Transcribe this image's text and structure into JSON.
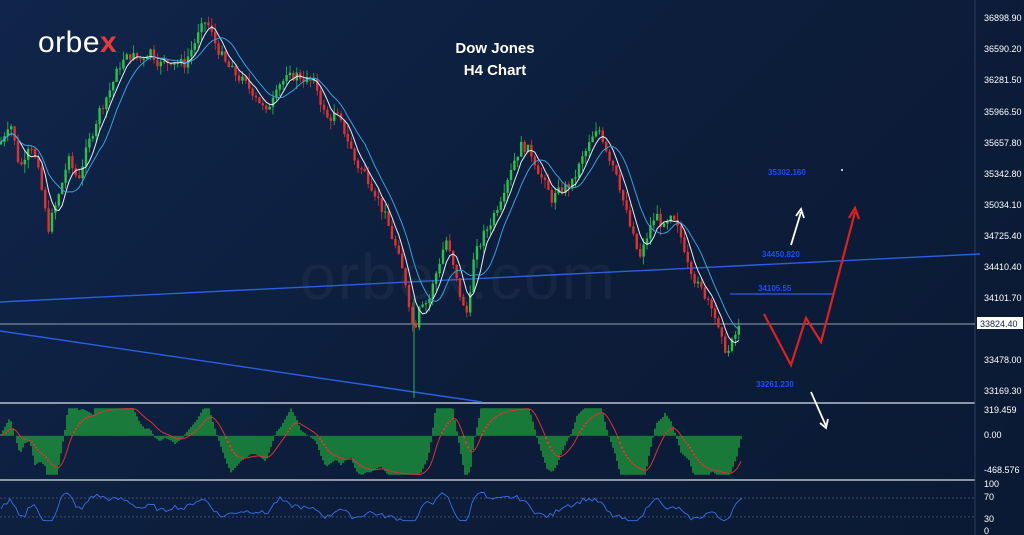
{
  "header": {
    "logo_text": "orbe",
    "logo_mark": "x",
    "title_line1": "Dow Jones",
    "title_line2": "H4 Chart",
    "watermark": "orbex.com"
  },
  "colors": {
    "background": "#0d1f3c",
    "bull_candle": "#27c34a",
    "bear_candle": "#e0312f",
    "trendline": "#2b5fe0",
    "projection_red": "#e0201e",
    "projection_white": "#ffffff",
    "macd_hist": "#21b83a",
    "rsi_line": "#3a6fe6"
  },
  "chart_data": {
    "type": "candlestick",
    "title": "",
    "price_axis_ticks": [
      "36898.90",
      "36590.20",
      "36281.50",
      "35966.50",
      "35657.80",
      "35342.80",
      "35034.10",
      "34725.40",
      "34410.40",
      "34101.70",
      "33824.40",
      "33478.00",
      "33169.30"
    ],
    "current_price": "33824.40",
    "price_range": [
      33050,
      37050
    ],
    "path_points": [
      [
        0,
        35650
      ],
      [
        10,
        35900
      ],
      [
        20,
        35400
      ],
      [
        30,
        35700
      ],
      [
        40,
        35300
      ],
      [
        48,
        34800
      ],
      [
        58,
        35100
      ],
      [
        68,
        35500
      ],
      [
        78,
        35300
      ],
      [
        90,
        35700
      ],
      [
        100,
        36000
      ],
      [
        110,
        36200
      ],
      [
        120,
        36450
      ],
      [
        130,
        36550
      ],
      [
        140,
        36500
      ],
      [
        150,
        36600
      ],
      [
        160,
        36450
      ],
      [
        172,
        36500
      ],
      [
        184,
        36450
      ],
      [
        196,
        36700
      ],
      [
        206,
        36900
      ],
      [
        216,
        36650
      ],
      [
        226,
        36450
      ],
      [
        236,
        36350
      ],
      [
        246,
        36250
      ],
      [
        256,
        36150
      ],
      [
        266,
        35950
      ],
      [
        276,
        36250
      ],
      [
        286,
        36300
      ],
      [
        296,
        36350
      ],
      [
        306,
        36300
      ],
      [
        316,
        36250
      ],
      [
        326,
        35900
      ],
      [
        336,
        35950
      ],
      [
        346,
        35750
      ],
      [
        356,
        35450
      ],
      [
        366,
        35350
      ],
      [
        376,
        35150
      ],
      [
        386,
        34900
      ],
      [
        396,
        34600
      ],
      [
        406,
        34250
      ],
      [
        414,
        33750
      ],
      [
        420,
        34100
      ],
      [
        428,
        34050
      ],
      [
        436,
        34350
      ],
      [
        446,
        34700
      ],
      [
        456,
        34300
      ],
      [
        466,
        33900
      ],
      [
        474,
        34500
      ],
      [
        482,
        34700
      ],
      [
        492,
        34900
      ],
      [
        502,
        35150
      ],
      [
        512,
        35450
      ],
      [
        522,
        35650
      ],
      [
        532,
        35550
      ],
      [
        542,
        35300
      ],
      [
        552,
        35100
      ],
      [
        562,
        35200
      ],
      [
        572,
        35250
      ],
      [
        582,
        35500
      ],
      [
        592,
        35700
      ],
      [
        600,
        35800
      ],
      [
        608,
        35550
      ],
      [
        616,
        35400
      ],
      [
        624,
        35050
      ],
      [
        632,
        34750
      ],
      [
        640,
        34500
      ],
      [
        648,
        34750
      ],
      [
        656,
        34950
      ],
      [
        664,
        34800
      ],
      [
        672,
        34900
      ],
      [
        680,
        34750
      ],
      [
        688,
        34500
      ],
      [
        696,
        34250
      ],
      [
        704,
        34150
      ],
      [
        712,
        34050
      ],
      [
        720,
        33700
      ],
      [
        728,
        33550
      ],
      [
        736,
        33750
      ],
      [
        742,
        33850
      ]
    ],
    "levels": [
      {
        "label": "35302.160",
        "price": 35302
      },
      {
        "label": "34450.820",
        "price": 34450
      },
      {
        "label": "34105.55",
        "price": 34105
      },
      {
        "label": "33261.230",
        "price": 33261
      }
    ],
    "macd": {
      "axis_ticks": [
        "319.459",
        "0.00",
        "-468.576"
      ],
      "range": [
        -520,
        380
      ]
    },
    "rsi": {
      "axis_ticks": [
        "100",
        "70",
        "30",
        "0"
      ],
      "range": [
        0,
        100
      ]
    }
  }
}
